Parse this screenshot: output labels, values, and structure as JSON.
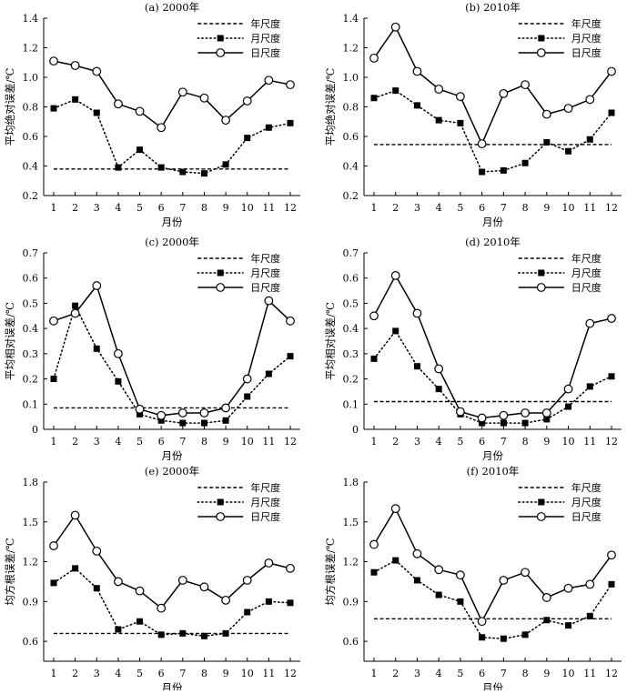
{
  "figure": {
    "background": "#ffffff",
    "line_color": "#000000"
  },
  "chart_data": [
    {
      "type": "line",
      "title": "(a) 2000年",
      "xlabel": "月份",
      "ylabel": "平均绝对误差/℃",
      "categories": [
        "1",
        "2",
        "3",
        "4",
        "5",
        "6",
        "7",
        "8",
        "9",
        "10",
        "11",
        "12"
      ],
      "ylim": [
        0.2,
        1.4
      ],
      "yticks": [
        "0.2",
        "0.4",
        "0.6",
        "0.8",
        "1.0",
        "1.2",
        "1.4"
      ],
      "legend": "top-right",
      "grid": false,
      "series": [
        {
          "name": "年尺度",
          "style": "dashed",
          "values": [
            0.38,
            0.38,
            0.38,
            0.38,
            0.38,
            0.38,
            0.38,
            0.38,
            0.38,
            0.38,
            0.38,
            0.38
          ]
        },
        {
          "name": "月尺度",
          "style": "dotted-square",
          "values": [
            0.79,
            0.85,
            0.76,
            0.39,
            0.51,
            0.39,
            0.36,
            0.35,
            0.41,
            0.59,
            0.66,
            0.69
          ]
        },
        {
          "name": "日尺度",
          "style": "solid-circle",
          "values": [
            1.11,
            1.08,
            1.04,
            0.82,
            0.77,
            0.66,
            0.9,
            0.86,
            0.71,
            0.84,
            0.98,
            0.95
          ]
        }
      ]
    },
    {
      "type": "line",
      "title": "(b) 2010年",
      "xlabel": "月份",
      "ylabel": "平均绝对误差/℃",
      "categories": [
        "1",
        "2",
        "3",
        "4",
        "5",
        "6",
        "7",
        "8",
        "9",
        "10",
        "11",
        "12"
      ],
      "ylim": [
        0.2,
        1.4
      ],
      "yticks": [
        "0.2",
        "0.4",
        "0.6",
        "0.8",
        "1.0",
        "1.2",
        "1.4"
      ],
      "legend": "top-right",
      "grid": false,
      "series": [
        {
          "name": "年尺度",
          "style": "dashed",
          "values": [
            0.545,
            0.545,
            0.545,
            0.545,
            0.545,
            0.545,
            0.545,
            0.545,
            0.545,
            0.545,
            0.545,
            0.545
          ]
        },
        {
          "name": "月尺度",
          "style": "dotted-square",
          "values": [
            0.86,
            0.91,
            0.81,
            0.71,
            0.69,
            0.36,
            0.37,
            0.42,
            0.56,
            0.5,
            0.58,
            0.76
          ]
        },
        {
          "name": "日尺度",
          "style": "solid-circle",
          "values": [
            1.13,
            1.34,
            1.04,
            0.92,
            0.87,
            0.55,
            0.89,
            0.95,
            0.75,
            0.79,
            0.85,
            1.04
          ]
        }
      ]
    },
    {
      "type": "line",
      "title": "(c) 2000年",
      "xlabel": "月份",
      "ylabel": "平均相对误差/℃",
      "categories": [
        "1",
        "2",
        "3",
        "4",
        "5",
        "6",
        "7",
        "8",
        "9",
        "10",
        "11",
        "12"
      ],
      "ylim": [
        0,
        0.7
      ],
      "yticks": [
        "0",
        "0.1",
        "0.2",
        "0.3",
        "0.4",
        "0.5",
        "0.6",
        "0.7"
      ],
      "legend": "top-right",
      "grid": false,
      "series": [
        {
          "name": "年尺度",
          "style": "dashed",
          "values": [
            0.085,
            0.085,
            0.085,
            0.085,
            0.085,
            0.085,
            0.085,
            0.085,
            0.085,
            0.085,
            0.085,
            0.085
          ]
        },
        {
          "name": "月尺度",
          "style": "dotted-square",
          "values": [
            0.2,
            0.49,
            0.32,
            0.19,
            0.06,
            0.035,
            0.025,
            0.025,
            0.035,
            0.13,
            0.22,
            0.29
          ]
        },
        {
          "name": "日尺度",
          "style": "solid-circle",
          "values": [
            0.43,
            0.46,
            0.57,
            0.3,
            0.08,
            0.055,
            0.065,
            0.065,
            0.085,
            0.2,
            0.51,
            0.43
          ]
        }
      ]
    },
    {
      "type": "line",
      "title": "(d) 2010年",
      "xlabel": "月份",
      "ylabel": "平均相对误差/℃",
      "categories": [
        "1",
        "2",
        "3",
        "4",
        "5",
        "6",
        "7",
        "8",
        "9",
        "10",
        "11",
        "12"
      ],
      "ylim": [
        0,
        0.7
      ],
      "yticks": [
        "0",
        "0.1",
        "0.2",
        "0.3",
        "0.4",
        "0.5",
        "0.6",
        "0.7"
      ],
      "legend": "top-right",
      "grid": false,
      "series": [
        {
          "name": "年尺度",
          "style": "dashed",
          "values": [
            0.11,
            0.11,
            0.11,
            0.11,
            0.11,
            0.11,
            0.11,
            0.11,
            0.11,
            0.11,
            0.11,
            0.11
          ]
        },
        {
          "name": "月尺度",
          "style": "dotted-square",
          "values": [
            0.28,
            0.39,
            0.25,
            0.16,
            0.06,
            0.025,
            0.025,
            0.025,
            0.04,
            0.09,
            0.17,
            0.21
          ]
        },
        {
          "name": "日尺度",
          "style": "solid-circle",
          "values": [
            0.45,
            0.61,
            0.46,
            0.24,
            0.07,
            0.045,
            0.055,
            0.065,
            0.065,
            0.16,
            0.42,
            0.44
          ]
        }
      ]
    },
    {
      "type": "line",
      "title": "(e) 2000年",
      "xlabel": "月份",
      "ylabel": "均方根误差/℃",
      "categories": [
        "1",
        "2",
        "3",
        "4",
        "5",
        "6",
        "7",
        "8",
        "9",
        "10",
        "11",
        "12"
      ],
      "ylim": [
        0.45,
        1.8
      ],
      "yticks": [
        "0.6",
        "0.9",
        "1.2",
        "1.5",
        "1.8"
      ],
      "legend": "top-right",
      "grid": false,
      "series": [
        {
          "name": "年尺度",
          "style": "dashed",
          "values": [
            0.66,
            0.66,
            0.66,
            0.66,
            0.66,
            0.66,
            0.66,
            0.66,
            0.66,
            0.66,
            0.66,
            0.66
          ]
        },
        {
          "name": "月尺度",
          "style": "dotted-square",
          "values": [
            1.04,
            1.15,
            1.0,
            0.69,
            0.75,
            0.65,
            0.66,
            0.64,
            0.66,
            0.82,
            0.9,
            0.89
          ]
        },
        {
          "name": "日尺度",
          "style": "solid-circle",
          "values": [
            1.32,
            1.55,
            1.28,
            1.05,
            0.98,
            0.85,
            1.06,
            1.01,
            0.91,
            1.06,
            1.19,
            1.15
          ]
        }
      ]
    },
    {
      "type": "line",
      "title": "(f) 2010年",
      "xlabel": "月份",
      "ylabel": "均方根误差/℃",
      "categories": [
        "1",
        "2",
        "3",
        "4",
        "5",
        "6",
        "7",
        "8",
        "9",
        "10",
        "11",
        "12"
      ],
      "ylim": [
        0.45,
        1.8
      ],
      "yticks": [
        "0.6",
        "0.9",
        "1.2",
        "1.5",
        "1.8"
      ],
      "legend": "top-right",
      "grid": false,
      "series": [
        {
          "name": "年尺度",
          "style": "dashed",
          "values": [
            0.77,
            0.77,
            0.77,
            0.77,
            0.77,
            0.77,
            0.77,
            0.77,
            0.77,
            0.77,
            0.77,
            0.77
          ]
        },
        {
          "name": "月尺度",
          "style": "dotted-square",
          "values": [
            1.12,
            1.21,
            1.06,
            0.95,
            0.9,
            0.63,
            0.62,
            0.65,
            0.76,
            0.72,
            0.79,
            1.03
          ]
        },
        {
          "name": "日尺度",
          "style": "solid-circle",
          "values": [
            1.33,
            1.6,
            1.26,
            1.14,
            1.1,
            0.75,
            1.06,
            1.12,
            0.93,
            1.0,
            1.03,
            1.25
          ]
        }
      ]
    }
  ]
}
